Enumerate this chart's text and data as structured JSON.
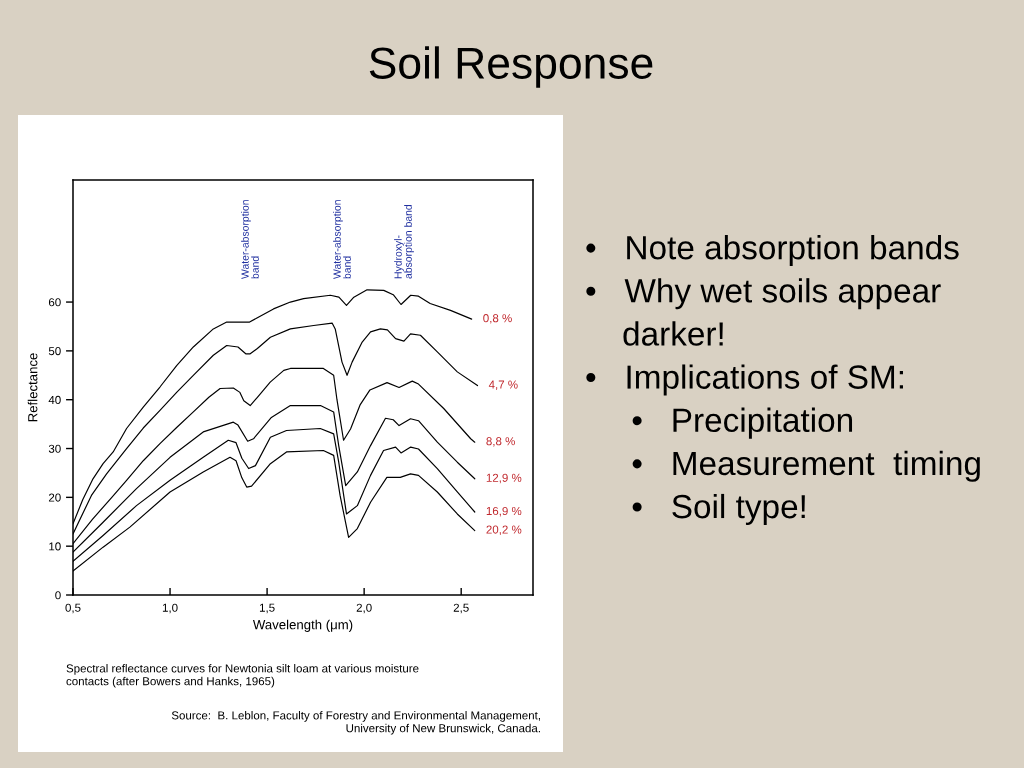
{
  "chart_data": {
    "type": "line",
    "title": "Soil Response",
    "xlabel": "Wavelength (μm)",
    "ylabel": "Reflectance",
    "xlim": [
      0.5,
      2.87
    ],
    "ylim": [
      0,
      85
    ],
    "xticks": [
      {
        "value": 0.5,
        "label": "0,5"
      },
      {
        "value": 1.0,
        "label": "1,0"
      },
      {
        "value": 1.5,
        "label": "1,5"
      },
      {
        "value": 2.0,
        "label": "2,0"
      },
      {
        "value": 2.5,
        "label": "2,5"
      }
    ],
    "yticks": [
      0,
      10,
      20,
      30,
      40,
      50,
      60
    ],
    "line_style": "solid",
    "series": [
      {
        "name": "0,8 %",
        "color": "#000000",
        "x": [
          0.5,
          0.55,
          0.603,
          0.655,
          0.707,
          0.776,
          0.862,
          0.948,
          1.034,
          1.12,
          1.223,
          1.292,
          1.41,
          1.45,
          1.533,
          1.62,
          1.688,
          1.826,
          1.87,
          1.909,
          1.947,
          2.015,
          2.101,
          2.15,
          2.19,
          2.24,
          2.28,
          2.34,
          2.445,
          2.554
        ],
        "values": [
          14.6,
          19.5,
          23.8,
          26.9,
          29.3,
          34.1,
          38.5,
          42.6,
          47.0,
          50.8,
          54.5,
          55.9,
          55.9,
          56.8,
          58.6,
          60.0,
          60.7,
          61.4,
          61.0,
          59.3,
          61.0,
          62.5,
          62.4,
          61.5,
          59.5,
          61.4,
          61.2,
          59.7,
          58.3,
          56.5
        ]
      },
      {
        "name": "4,7 %",
        "color": "#000000",
        "x": [
          0.5,
          0.595,
          0.673,
          0.776,
          0.862,
          0.948,
          1.034,
          1.12,
          1.223,
          1.292,
          1.35,
          1.39,
          1.413,
          1.45,
          1.517,
          1.62,
          1.74,
          1.835,
          1.851,
          1.886,
          1.912,
          1.938,
          1.99,
          2.033,
          2.084,
          2.12,
          2.162,
          2.205,
          2.239,
          2.29,
          2.377,
          2.48,
          2.584
        ],
        "values": [
          12.5,
          20.4,
          24.8,
          30.0,
          34.2,
          37.8,
          41.5,
          45.0,
          49.1,
          51.1,
          50.8,
          49.4,
          49.4,
          50.5,
          52.8,
          54.5,
          55.2,
          55.7,
          54.5,
          47.7,
          45.0,
          47.7,
          51.8,
          53.9,
          54.5,
          54.3,
          52.5,
          52.0,
          53.5,
          53.2,
          49.8,
          45.7,
          42.9
        ]
      },
      {
        "name": "8,8 %",
        "color": "#000000",
        "x": [
          0.5,
          0.6,
          0.7,
          0.776,
          0.862,
          0.948,
          1.034,
          1.12,
          1.2,
          1.258,
          1.326,
          1.36,
          1.38,
          1.413,
          1.45,
          1.516,
          1.586,
          1.62,
          1.79,
          1.843,
          1.86,
          1.894,
          1.93,
          1.98,
          2.03,
          2.118,
          2.18,
          2.248,
          2.28,
          2.41,
          2.549,
          2.57
        ],
        "values": [
          10.5,
          15.5,
          20.0,
          23.5,
          27.5,
          31.0,
          34.3,
          37.5,
          40.5,
          42.3,
          42.4,
          41.5,
          39.8,
          38.8,
          40.5,
          43.6,
          46.0,
          46.4,
          46.4,
          45.0,
          40,
          31.7,
          34,
          39,
          42,
          43.5,
          42.5,
          43.8,
          43.2,
          38.2,
          32.0,
          31.3
        ]
      },
      {
        "name": "12,9 %",
        "color": "#000000",
        "x": [
          0.5,
          0.655,
          0.827,
          1.0,
          1.171,
          1.326,
          1.35,
          1.4,
          1.43,
          1.52,
          1.62,
          1.775,
          1.843,
          1.869,
          1.905,
          1.965,
          2.033,
          2.11,
          2.15,
          2.18,
          2.239,
          2.28,
          2.377,
          2.48,
          2.57
        ],
        "values": [
          8.8,
          14.9,
          21.8,
          28.2,
          33.4,
          35.4,
          34.8,
          31.5,
          32.0,
          36.3,
          38.8,
          38.8,
          37.5,
          30.6,
          22.4,
          25.2,
          30.6,
          36.2,
          35.9,
          34.7,
          36.1,
          35.7,
          31.3,
          27.2,
          23.8
        ]
      },
      {
        "name": "16,9 %",
        "color": "#000000",
        "x": [
          0.5,
          0.655,
          0.827,
          1.0,
          1.171,
          1.3,
          1.34,
          1.37,
          1.405,
          1.44,
          1.517,
          1.6,
          1.774,
          1.843,
          1.869,
          1.909,
          1.965,
          2.033,
          2.1,
          2.162,
          2.19,
          2.24,
          2.28,
          2.377,
          2.48,
          2.57
        ],
        "values": [
          6.9,
          12.2,
          18.3,
          23.5,
          28.2,
          31.7,
          31.2,
          28,
          25.9,
          26.5,
          32.3,
          33.7,
          34.1,
          33.0,
          27.2,
          16.6,
          18.3,
          24.5,
          29.6,
          30.3,
          29.1,
          30.3,
          29.9,
          25.9,
          21.1,
          17.0
        ]
      },
      {
        "name": "20,2 %",
        "color": "#000000",
        "x": [
          0.5,
          0.655,
          0.793,
          1.0,
          1.171,
          1.309,
          1.34,
          1.37,
          1.395,
          1.42,
          1.517,
          1.6,
          1.79,
          1.843,
          1.876,
          1.92,
          1.965,
          2.033,
          2.117,
          2.186,
          2.239,
          2.28,
          2.377,
          2.48,
          2.57
        ],
        "values": [
          4.9,
          9.8,
          13.9,
          21.1,
          25.2,
          28.2,
          27.5,
          24,
          22.1,
          22.3,
          26.9,
          29.3,
          29.6,
          28.6,
          20.4,
          11.8,
          13.6,
          19.0,
          24.1,
          24.1,
          24.8,
          24.5,
          21.1,
          16.6,
          13.2
        ]
      }
    ],
    "annotations": [
      "Water-absorption\nband",
      "Water-absorption\nband",
      "Hydroxyl-\nabsorption band",
      "Spectral reflectance curves for Newtonia silt loam at various moisture\ncontacts (after Bowers and Hanks, 1965)",
      "Source:  B. Leblon, Faculty of Forestry and Environmental Management,\nUniversity of New Brunswick, Canada.",
      "•   Note absorption bands\n•   Why wet soils appear\n    darker!\n•   Implications of SM:\n     •   Precipitation\n     •   Measurement  timing\n     •   Soil type!"
    ]
  }
}
